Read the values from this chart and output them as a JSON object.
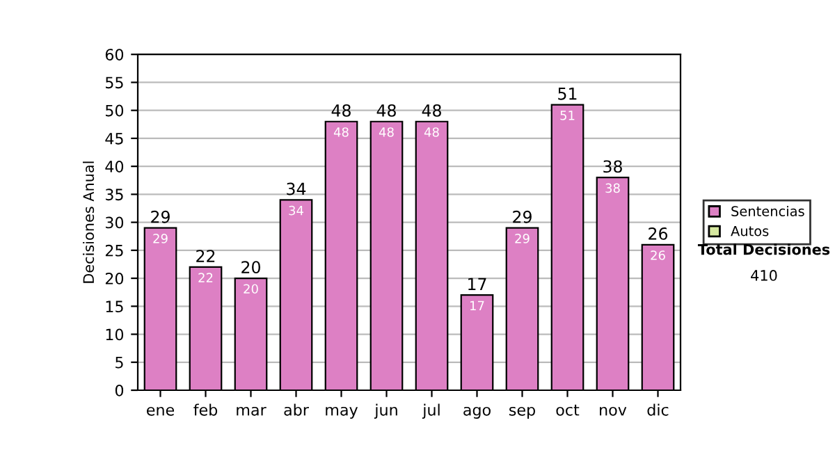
{
  "chart_data": {
    "type": "bar",
    "ylabel": "Decisiones Anual",
    "categories": [
      "ene",
      "feb",
      "mar",
      "abr",
      "may",
      "jun",
      "jul",
      "ago",
      "sep",
      "oct",
      "nov",
      "dic"
    ],
    "series": [
      {
        "name": "Sentencias",
        "color": "#dd80c4",
        "values": [
          29,
          22,
          20,
          34,
          48,
          48,
          48,
          17,
          29,
          51,
          38,
          26
        ]
      },
      {
        "name": "Autos",
        "color": "#d6e8a0",
        "values": [
          null,
          null,
          null,
          null,
          null,
          null,
          null,
          null,
          null,
          null,
          null,
          null
        ]
      }
    ],
    "stacked": true,
    "data_labels": true,
    "totals": [
      "29",
      "22",
      "20",
      "34",
      "48",
      "48",
      "48",
      "17",
      "29",
      "51",
      "38",
      "26"
    ],
    "ylim": [
      0,
      60
    ],
    "yticks": [
      0,
      5,
      10,
      15,
      20,
      25,
      30,
      35,
      40,
      45,
      50,
      55,
      60
    ],
    "grid": "y",
    "legend": "right",
    "annotations": [
      "Total Decisiones",
      "410"
    ]
  }
}
